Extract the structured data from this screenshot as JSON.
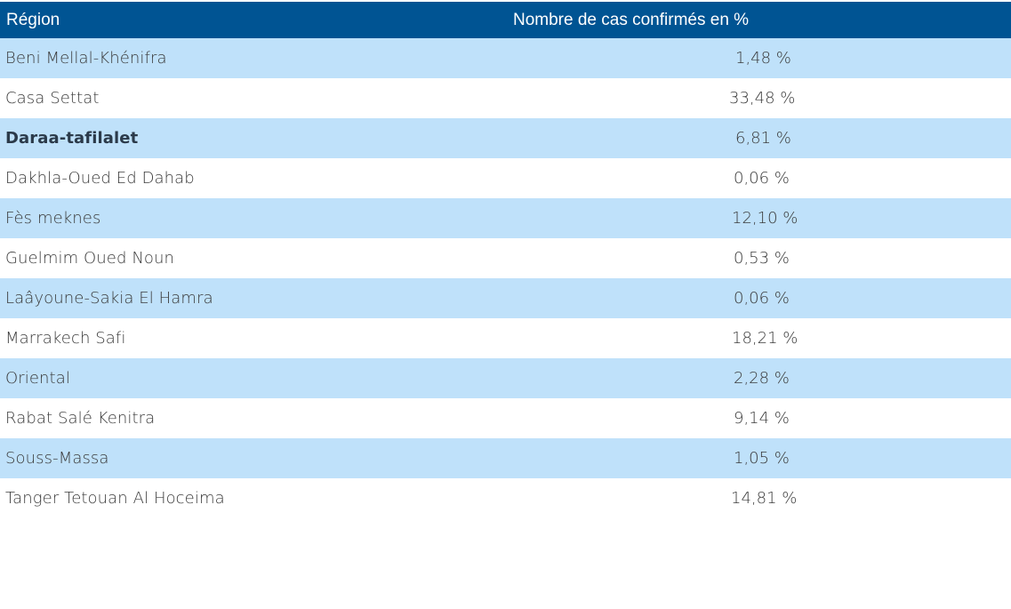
{
  "table": {
    "headers": {
      "region": "Région",
      "cases": "Nombre de cas confirmés en %"
    },
    "rows": [
      {
        "region": "Beni Mellal-Khénifra",
        "cases": "1,48 %"
      },
      {
        "region": "Casa Settat",
        "cases": "33,48 %"
      },
      {
        "region": "Daraa-tafilalet",
        "cases": "6,81 %"
      },
      {
        "region": "Dakhla-Oued Ed Dahab",
        "cases": "0,06 %"
      },
      {
        "region": "Fès meknes",
        "cases": "12,10 %"
      },
      {
        "region": "Guelmim Oued Noun",
        "cases": "0,53 %"
      },
      {
        "region": "Laâyoune-Sakia El Hamra",
        "cases": "0,06 %"
      },
      {
        "region": "Marrakech Safi",
        "cases": "18,21 %"
      },
      {
        "region": "Oriental",
        "cases": "2,28 %"
      },
      {
        "region": "Rabat Salé Kenitra",
        "cases": "9,14 %"
      },
      {
        "region": "Souss-Massa",
        "cases": "1,05 %"
      },
      {
        "region": "Tanger Tetouan Al Hoceima",
        "cases": "14,81 %"
      }
    ]
  },
  "colors": {
    "header_background": "#005493",
    "stripe_background": "#bfe1fa",
    "header_text": "#ffffff",
    "body_text": "#3a3a3a"
  }
}
